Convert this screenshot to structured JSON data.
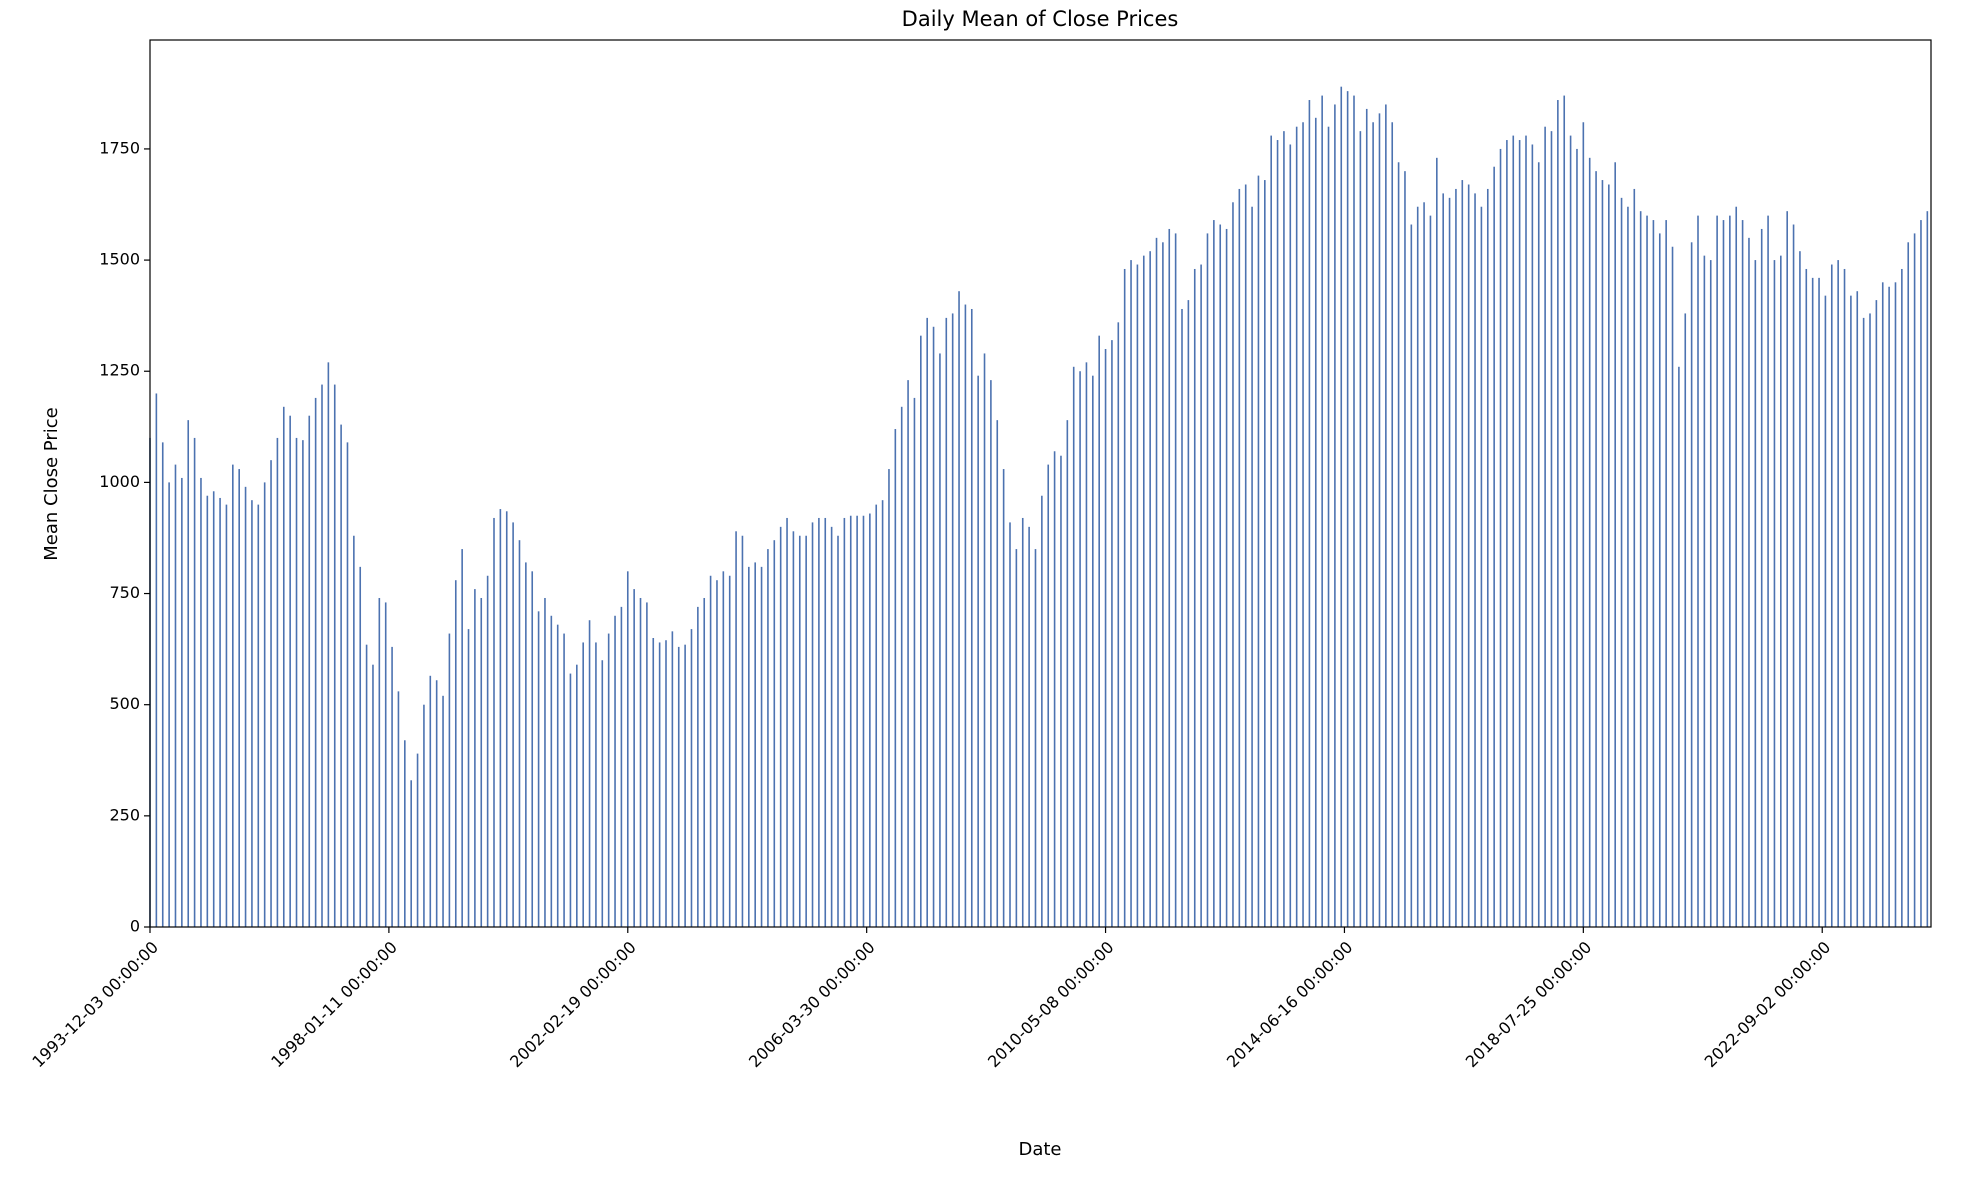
{
  "chart_data": {
    "type": "bar",
    "title": "Daily Mean of Close Prices",
    "xlabel": "Date",
    "ylabel": "Mean Close Price",
    "color": "#4c72b0",
    "x": [
      0,
      40,
      80,
      120,
      160,
      200,
      240,
      280,
      320,
      360,
      400,
      440,
      480,
      520,
      560,
      600,
      640,
      680,
      720,
      760,
      800,
      840,
      880,
      920,
      960,
      1000,
      1040,
      1080,
      1120,
      1160,
      1200,
      1240,
      1280,
      1320,
      1360,
      1400,
      1440,
      1480,
      1520,
      1560,
      1600,
      1640,
      1680,
      1720,
      1760,
      1800,
      1840,
      1880,
      1920,
      1960,
      2000,
      2040,
      2080,
      2120,
      2160,
      2200,
      2240,
      2280,
      2320,
      2360,
      2400,
      2440,
      2480,
      2520,
      2560,
      2600,
      2640,
      2680,
      2720,
      2760,
      2800,
      2840,
      2880,
      2920,
      2960,
      3000,
      3040,
      3080,
      3120,
      3160,
      3200,
      3240,
      3280,
      3320,
      3360,
      3400,
      3440,
      3480,
      3520,
      3560,
      3600,
      3640,
      3680,
      3720,
      3760,
      3800,
      3840,
      3880,
      3920,
      3960,
      4000,
      4040,
      4080,
      4120,
      4160,
      4200,
      4240,
      4280,
      4320,
      4360,
      4400,
      4440,
      4480,
      4520,
      4560,
      4600,
      4640,
      4680,
      4720,
      4760,
      4800,
      4840,
      4880,
      4920,
      4960,
      5000,
      5040,
      5080,
      5120,
      5160,
      5200,
      5240,
      5280,
      5320,
      5360,
      5400,
      5440,
      5480,
      5520,
      5560,
      5600,
      5640,
      5680,
      5720,
      5760,
      5800,
      5840,
      5880,
      5920,
      5960,
      6000,
      6040,
      6080,
      6120,
      6160,
      6200,
      6240,
      6280,
      6320,
      6360,
      6400,
      6440,
      6480,
      6520,
      6560,
      6600,
      6640,
      6680,
      6720,
      6760,
      6800,
      6840,
      6880,
      6920,
      6960,
      7000,
      7040,
      7080,
      7120,
      7160,
      7200,
      7240,
      7280,
      7320,
      7360,
      7400,
      7440,
      7480,
      7520,
      7560,
      7600,
      7640,
      7680,
      7720,
      7760,
      7800,
      7840,
      7880,
      7920,
      7960,
      8000,
      8040,
      8080,
      8120,
      8160,
      8200,
      8240,
      8280,
      8320,
      8360,
      8400,
      8440,
      8480,
      8520,
      8560,
      8600,
      8640,
      8680,
      8720,
      8760,
      8800,
      8840,
      8880,
      8920,
      8960,
      9000,
      9040,
      9080,
      9120,
      9160,
      9200,
      9240,
      9280,
      9320,
      9360,
      9400,
      9440,
      9480,
      9520,
      9560,
      9600,
      9640,
      9680,
      9720,
      9760,
      9800,
      9840,
      9880,
      9920,
      9960,
      10000,
      10040,
      10080,
      10120,
      10160,
      10200,
      10240,
      10280,
      10320,
      10360,
      10400,
      10440,
      10480,
      10520,
      10560,
      10600,
      10640,
      10680,
      10720,
      10760,
      10800,
      10840,
      10880,
      10920,
      10960,
      11000,
      11040,
      11080,
      11120,
      11160
    ],
    "values": [
      1100,
      1200,
      1090,
      1000,
      1040,
      1010,
      1140,
      1100,
      1010,
      970,
      980,
      965,
      950,
      1040,
      1030,
      990,
      960,
      950,
      1000,
      1050,
      1100,
      1170,
      1150,
      1100,
      1095,
      1150,
      1190,
      1220,
      1270,
      1220,
      1130,
      1090,
      880,
      810,
      635,
      590,
      740,
      730,
      630,
      530,
      420,
      330,
      390,
      500,
      565,
      555,
      520,
      660,
      780,
      850,
      670,
      760,
      740,
      790,
      920,
      940,
      935,
      910,
      870,
      820,
      800,
      710,
      740,
      700,
      680,
      660,
      570,
      590,
      640,
      690,
      640,
      600,
      660,
      700,
      720,
      800,
      760,
      740,
      730,
      650,
      640,
      645,
      665,
      630,
      635,
      670,
      720,
      740,
      790,
      780,
      800,
      790,
      890,
      880,
      810,
      820,
      810,
      850,
      870,
      900,
      920,
      890,
      880,
      880,
      910,
      920,
      920,
      900,
      880,
      920,
      925,
      925,
      925,
      930,
      950,
      960,
      1030,
      1120,
      1170,
      1230,
      1190,
      1330,
      1370,
      1350,
      1290,
      1370,
      1380,
      1430,
      1400,
      1390,
      1240,
      1290,
      1230,
      1140,
      1030,
      910,
      850,
      920,
      900,
      850,
      970,
      1040,
      1070,
      1060,
      1140,
      1260,
      1250,
      1270,
      1240,
      1330,
      1300,
      1320,
      1360,
      1480,
      1500,
      1490,
      1510,
      1520,
      1550,
      1540,
      1570,
      1560,
      1390,
      1410,
      1480,
      1490,
      1560,
      1590,
      1580,
      1570,
      1630,
      1660,
      1670,
      1620,
      1690,
      1680,
      1780,
      1770,
      1790,
      1760,
      1800,
      1810,
      1860,
      1820,
      1870,
      1800,
      1850,
      1890,
      1880,
      1870,
      1790,
      1840,
      1810,
      1830,
      1850,
      1810,
      1720,
      1700,
      1580,
      1620,
      1630,
      1600,
      1730,
      1650,
      1640,
      1660,
      1680,
      1670,
      1650,
      1620,
      1660,
      1710,
      1750,
      1770,
      1780,
      1770,
      1780,
      1760,
      1720,
      1800,
      1790,
      1860,
      1870,
      1780,
      1750,
      1810,
      1730,
      1700,
      1680,
      1670,
      1720,
      1640,
      1620,
      1660,
      1610,
      1600,
      1590,
      1560,
      1590,
      1530,
      1260,
      1380,
      1540,
      1600,
      1510,
      1500,
      1600,
      1590,
      1600,
      1620,
      1590,
      1550,
      1500,
      1570,
      1600,
      1500,
      1510,
      1610,
      1580,
      1520,
      1480,
      1460,
      1460,
      1420,
      1490,
      1500,
      1480,
      1420,
      1430,
      1370,
      1380,
      1410,
      1450,
      1440,
      1450,
      1480,
      1540,
      1560,
      1590,
      1610
    ],
    "xlim": [
      0,
      11183
    ],
    "xticks": [
      {
        "value": 0,
        "label": "1993-12-03 00:00:00"
      },
      {
        "value": 1500,
        "label": "1998-01-11 00:00:00"
      },
      {
        "value": 3000,
        "label": "2002-02-19 00:00:00"
      },
      {
        "value": 4500,
        "label": "2006-03-30 00:00:00"
      },
      {
        "value": 6000,
        "label": "2010-05-08 00:00:00"
      },
      {
        "value": 7500,
        "label": "2014-06-16 00:00:00"
      },
      {
        "value": 9000,
        "label": "2018-07-25 00:00:00"
      },
      {
        "value": 10500,
        "label": "2022-09-02 00:00:00"
      }
    ],
    "ylim": [
      0,
      1995
    ],
    "yticks": [
      0,
      250,
      500,
      750,
      1000,
      1250,
      1500,
      1750
    ]
  }
}
